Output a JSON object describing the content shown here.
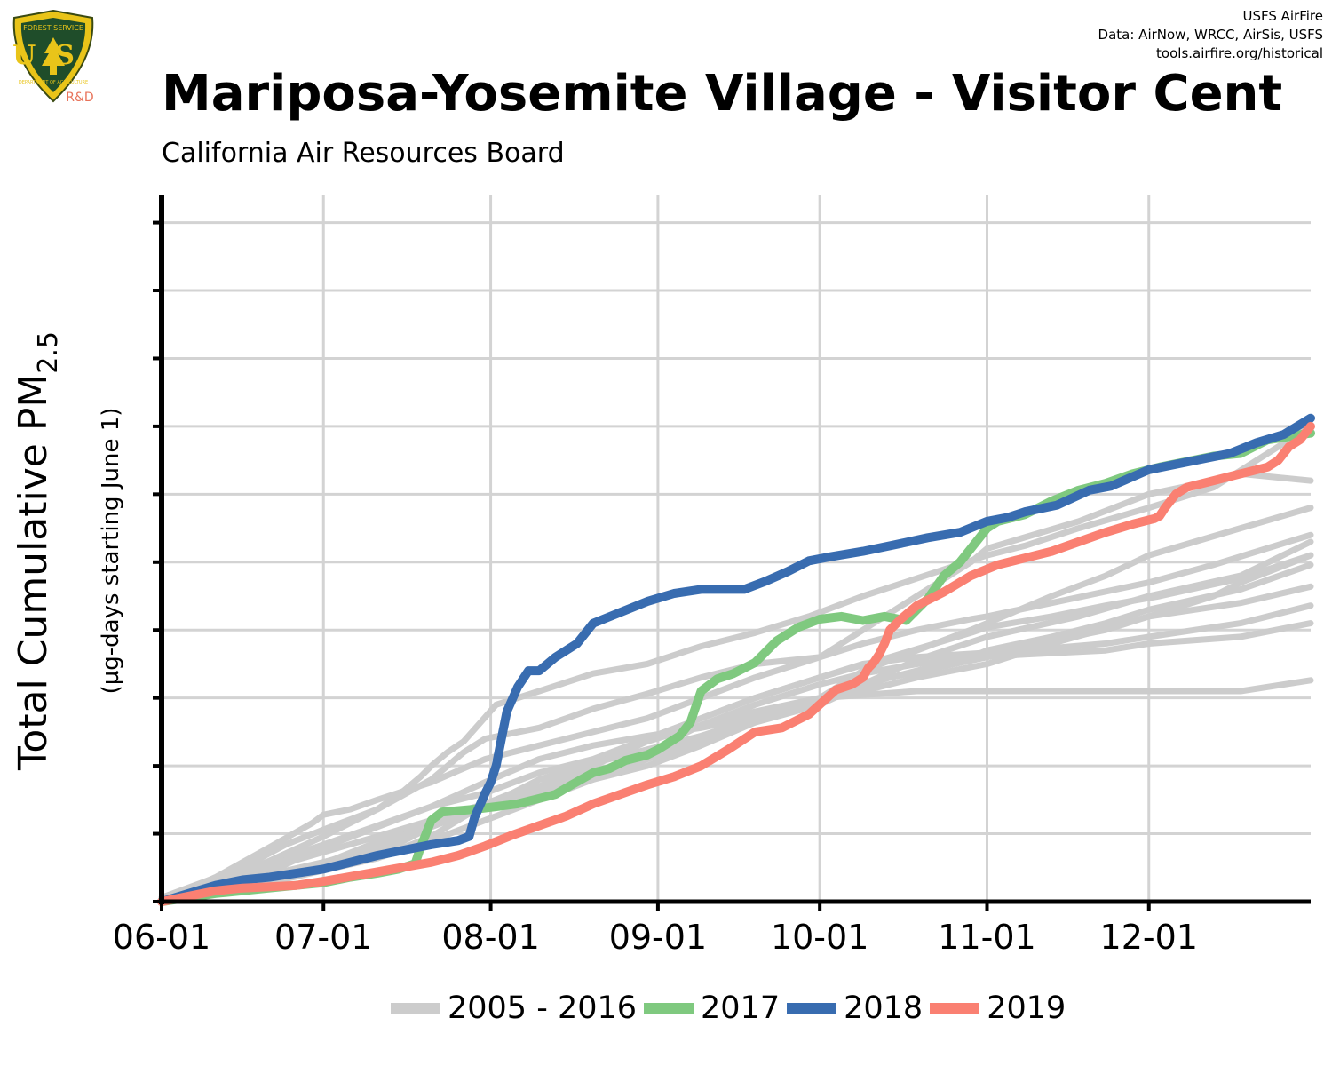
{
  "logo": {
    "agency_text": "FOREST SERVICE",
    "letters": "US",
    "dept_text": "DEPARTMENT OF AGRICULTURE",
    "tag": "R&D"
  },
  "credits": [
    "USFS AirFire",
    "Data: AirNow, WRCC, AirSis, USFS",
    "tools.airfire.org/historical"
  ],
  "title": "Mariposa-Yosemite Village - Visitor Cent",
  "subtitle": "California Air Resources Board",
  "colors": {
    "background": "#ffffff",
    "grid": "#d3d3d3",
    "history": "#cccccc",
    "y2017": "#7fc97f",
    "y2018": "#386cb0",
    "y2019": "#fa8072",
    "axis": "#000000"
  },
  "chart_data": {
    "type": "line",
    "title": "Mariposa-Yosemite Village - Visitor Cent",
    "subtitle": "California Air Resources Board",
    "xlabel": "",
    "ylabel_main": "Total Cumulative PM",
    "ylabel_subscript": "2.5",
    "ylabel_units": "(µg-days starting June 1)",
    "x_unit": "days since June 1",
    "xlim": [
      0,
      213
    ],
    "ylim": [
      0,
      520
    ],
    "x_ticks": [
      {
        "label": "06-01",
        "x": 0
      },
      {
        "label": "07-01",
        "x": 30
      },
      {
        "label": "08-01",
        "x": 61
      },
      {
        "label": "09-01",
        "x": 92
      },
      {
        "label": "10-01",
        "x": 122
      },
      {
        "label": "11-01",
        "x": 153
      },
      {
        "label": "12-01",
        "x": 183
      }
    ],
    "y_gridlines": [
      0,
      50,
      100,
      150,
      200,
      250,
      300,
      350,
      400,
      450,
      500
    ],
    "y_tick_labels_shown": false,
    "grid": true,
    "legend_position": "bottom",
    "legend": [
      {
        "label": "2005 - 2016",
        "color": "#cccccc"
      },
      {
        "label": "2017",
        "color": "#7fc97f"
      },
      {
        "label": "2018",
        "color": "#386cb0"
      },
      {
        "label": "2019",
        "color": "#fa8072"
      }
    ],
    "history_series": [
      {
        "x": [
          0,
          15,
          23,
          30,
          40,
          45,
          48,
          50,
          53,
          56,
          62,
          70,
          80,
          90,
          100,
          110,
          120,
          130,
          140,
          153,
          160,
          170,
          183,
          195,
          213
        ],
        "y": [
          3,
          25,
          42,
          53,
          68,
          82,
          92,
          100,
          110,
          118,
          145,
          155,
          168,
          175,
          188,
          198,
          210,
          225,
          238,
          255,
          262,
          275,
          290,
          305,
          350
        ]
      },
      {
        "x": [
          0,
          10,
          20,
          28,
          30,
          35,
          40,
          50,
          60,
          70,
          80,
          90,
          100,
          110,
          122,
          130,
          140,
          150,
          153,
          165,
          183,
          195,
          213
        ],
        "y": [
          0,
          18,
          40,
          58,
          64,
          68,
          75,
          88,
          105,
          115,
          125,
          135,
          150,
          165,
          180,
          190,
          200,
          208,
          210,
          220,
          235,
          248,
          270
        ]
      },
      {
        "x": [
          0,
          15,
          30,
          40,
          50,
          60,
          70,
          80,
          90,
          100,
          110,
          122,
          135,
          150,
          153,
          165,
          175,
          183,
          200,
          213
        ],
        "y": [
          0,
          12,
          28,
          44,
          56,
          70,
          80,
          90,
          100,
          115,
          132,
          150,
          165,
          180,
          185,
          195,
          205,
          215,
          230,
          248
        ]
      },
      {
        "x": [
          0,
          20,
          30,
          40,
          50,
          60,
          70,
          80,
          90,
          100,
          110,
          122,
          135,
          150,
          153,
          165,
          175,
          185,
          200,
          213
        ],
        "y": [
          0,
          22,
          40,
          55,
          70,
          80,
          95,
          105,
          120,
          135,
          150,
          165,
          180,
          198,
          202,
          210,
          218,
          225,
          238,
          255
        ]
      },
      {
        "x": [
          0,
          20,
          40,
          50,
          55,
          60,
          70,
          80,
          90,
          100,
          110,
          122,
          135,
          153,
          165,
          175,
          183,
          200,
          213
        ],
        "y": [
          0,
          15,
          32,
          48,
          60,
          72,
          80,
          90,
          105,
          118,
          133,
          148,
          165,
          180,
          192,
          200,
          210,
          220,
          232
        ]
      },
      {
        "x": [
          0,
          20,
          40,
          50,
          60,
          70,
          80,
          90,
          100,
          110,
          122,
          130,
          140,
          150,
          160,
          175,
          183,
          200,
          213
        ],
        "y": [
          0,
          20,
          38,
          55,
          72,
          85,
          100,
          118,
          130,
          145,
          160,
          168,
          175,
          180,
          182,
          185,
          190,
          195,
          205
        ]
      },
      {
        "x": [
          0,
          20,
          40,
          50,
          60,
          65,
          70,
          80,
          90,
          100,
          110,
          122,
          130,
          140,
          153,
          170,
          183,
          200,
          213
        ],
        "y": [
          0,
          25,
          48,
          60,
          72,
          80,
          90,
          102,
          112,
          122,
          132,
          145,
          160,
          178,
          195,
          210,
          225,
          240,
          265
        ]
      },
      {
        "x": [
          0,
          20,
          40,
          50,
          60,
          70,
          80,
          90,
          100,
          110,
          122,
          130,
          140,
          160,
          175,
          183,
          200,
          213
        ],
        "y": [
          0,
          18,
          40,
          58,
          72,
          85,
          100,
          120,
          135,
          150,
          165,
          175,
          180,
          185,
          190,
          195,
          205,
          218
        ]
      },
      {
        "x": [
          0,
          15,
          30,
          50,
          60,
          70,
          80,
          90,
          100,
          110,
          122,
          130,
          140,
          150,
          153,
          165,
          175,
          183,
          200,
          213
        ],
        "y": [
          0,
          22,
          42,
          70,
          88,
          105,
          115,
          122,
          128,
          136,
          150,
          170,
          185,
          200,
          205,
          225,
          240,
          255,
          275,
          290
        ]
      },
      {
        "x": [
          0,
          20,
          30,
          40,
          50,
          56,
          60,
          70,
          80,
          90,
          100,
          110,
          122,
          140,
          150,
          153,
          170,
          183,
          195,
          200,
          213
        ],
        "y": [
          0,
          30,
          48,
          68,
          90,
          110,
          120,
          128,
          142,
          153,
          165,
          175,
          180,
          225,
          250,
          260,
          280,
          300,
          310,
          315,
          310
        ]
      },
      {
        "x": [
          0,
          20,
          40,
          50,
          60,
          70,
          80,
          90,
          95,
          100,
          110,
          122,
          140,
          153,
          170,
          183,
          200,
          213
        ],
        "y": [
          0,
          14,
          32,
          45,
          60,
          75,
          90,
          105,
          120,
          130,
          140,
          150,
          155,
          155,
          155,
          155,
          155,
          163
        ]
      },
      {
        "x": [
          0,
          20,
          40,
          50,
          60,
          70,
          80,
          90,
          100,
          110,
          122,
          130,
          140,
          153,
          165,
          183,
          195,
          200,
          213
        ],
        "y": [
          0,
          18,
          35,
          55,
          70,
          82,
          95,
          110,
          122,
          135,
          148,
          155,
          165,
          175,
          190,
          210,
          225,
          235,
          255
        ]
      }
    ],
    "series": [
      {
        "name": "2017",
        "color": "#7fc97f",
        "x": [
          0,
          10,
          20,
          30,
          35,
          40,
          44,
          47,
          48,
          50,
          52,
          55,
          58,
          60,
          62,
          66,
          70,
          72,
          73,
          76,
          80,
          83,
          86,
          88,
          90,
          92,
          94,
          96,
          98,
          100,
          103,
          106,
          110,
          114,
          118,
          122,
          126,
          130,
          134,
          138,
          138,
          142,
          145,
          148,
          150,
          153,
          155,
          160,
          165,
          170,
          175,
          180,
          185,
          190,
          195,
          200,
          205,
          213
        ],
        "y": [
          0,
          6,
          10,
          14,
          18,
          21,
          24,
          28,
          40,
          60,
          66,
          67,
          68,
          69,
          70,
          72,
          76,
          78,
          79,
          86,
          95,
          98,
          104,
          106,
          108,
          112,
          117,
          122,
          132,
          155,
          164,
          168,
          176,
          192,
          202,
          208,
          210,
          207,
          210,
          207,
          207,
          223,
          240,
          250,
          260,
          275,
          280,
          285,
          295,
          303,
          308,
          315,
          320,
          324,
          328,
          330,
          340,
          345
        ]
      },
      {
        "name": "2018",
        "color": "#386cb0",
        "x": [
          0,
          5,
          10,
          15,
          20,
          25,
          30,
          35,
          40,
          45,
          50,
          55,
          57,
          58,
          60,
          61,
          62,
          63,
          64,
          66,
          68,
          70,
          73,
          77,
          80,
          85,
          90,
          95,
          100,
          104,
          108,
          112,
          116,
          120,
          124,
          130,
          135,
          142,
          148,
          153,
          157,
          160,
          166,
          172,
          176,
          183,
          188,
          193,
          198,
          203,
          208,
          213
        ],
        "y": [
          0,
          6,
          12,
          16,
          18,
          21,
          24,
          29,
          34,
          38,
          42,
          45,
          48,
          62,
          80,
          88,
          100,
          120,
          140,
          158,
          170,
          170,
          180,
          190,
          205,
          213,
          221,
          227,
          230,
          230,
          230,
          236,
          243,
          251,
          254,
          258,
          262,
          268,
          272,
          280,
          283,
          287,
          292,
          303,
          306,
          318,
          322,
          326,
          330,
          338,
          344,
          356
        ]
      },
      {
        "name": "2019",
        "color": "#fa8072",
        "x": [
          0,
          5,
          10,
          15,
          20,
          25,
          30,
          40,
          50,
          55,
          60,
          65,
          70,
          75,
          80,
          85,
          90,
          95,
          100,
          105,
          110,
          115,
          120,
          125,
          128,
          130,
          131,
          132,
          133,
          134,
          135,
          137,
          140,
          145,
          150,
          155,
          160,
          165,
          170,
          175,
          180,
          183,
          184,
          185,
          186,
          188,
          190,
          195,
          200,
          205,
          207,
          209,
          211,
          213
        ],
        "y": [
          0,
          4,
          8,
          10,
          11,
          12,
          15,
          22,
          29,
          34,
          41,
          49,
          56,
          63,
          72,
          79,
          86,
          92,
          100,
          112,
          125,
          128,
          138,
          156,
          160,
          165,
          172,
          176,
          182,
          190,
          200,
          208,
          218,
          228,
          240,
          248,
          253,
          258,
          265,
          272,
          278,
          281,
          282,
          284,
          290,
          300,
          305,
          310,
          315,
          320,
          325,
          335,
          340,
          350
        ]
      }
    ]
  }
}
